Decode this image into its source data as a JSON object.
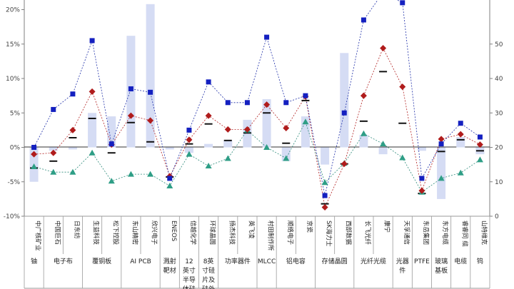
{
  "chart_data": {
    "type": "bar",
    "left_axis": {
      "ticks": [
        "20%",
        "15%",
        "10%",
        "5%",
        "0%",
        "-5%",
        "-10%"
      ],
      "ylim": [
        -10,
        20
      ]
    },
    "right_axis": {
      "ticks": [
        "0",
        "10",
        "20",
        "30",
        "40",
        "50"
      ],
      "ylim": [
        0,
        60
      ]
    },
    "companies": [
      "中广核矿业",
      "中国巨石",
      "日东纺",
      "生益科技",
      "松下控股",
      "东山精密",
      "欣兴电子",
      "ENEOS",
      "信越化学",
      "环球晶圆",
      "扬杰科技",
      "英飞凌",
      "村田制作所",
      "顺络电子",
      "京瓷",
      "SK海力士",
      "西部数据",
      "长飞光纤",
      "康宁",
      "天孚通信",
      "东岳集团",
      "东方电缆",
      "睿睿同 缆",
      "山特维克"
    ],
    "groups": [
      {
        "label": "铀",
        "span": 1
      },
      {
        "label": "电子布",
        "span": 2
      },
      {
        "label": "覆铜板",
        "span": 2
      },
      {
        "label": "AI PCB",
        "span": 2
      },
      {
        "label": "溅射靶材",
        "span": 1
      },
      {
        "label": "12英寸半导体硅片",
        "span": 1
      },
      {
        "label": "8英寸硅片及硅外延",
        "span": 1
      },
      {
        "label": "功率器件",
        "span": 2
      },
      {
        "label": "MLCC",
        "span": 1
      },
      {
        "label": "铝电容",
        "span": 2
      },
      {
        "label": "存储晶圆",
        "span": 2
      },
      {
        "label": "光纤光缆",
        "span": 2
      },
      {
        "label": "光器件",
        "span": 1
      },
      {
        "label": "PTFE",
        "span": 1
      },
      {
        "label": "玻璃基板",
        "span": 1
      },
      {
        "label": "电缆",
        "span": 1
      },
      {
        "label": "钨",
        "span": 1
      }
    ],
    "series": [
      {
        "marker": "bar",
        "axis": "left",
        "values": [
          -5,
          -0.5,
          -0.3,
          5,
          4.5,
          16.2,
          20.8,
          -0.3,
          -0.8,
          0.5,
          1.0,
          4.0,
          7.0,
          -2.0,
          4.5,
          -2.5,
          13.7,
          1.8,
          -1.0,
          0,
          -0.5,
          -7.5,
          1.5,
          -1.0
        ]
      },
      {
        "marker": "dash",
        "axis": "left",
        "values": [
          -3.0,
          -2.0,
          1.4,
          4.2,
          -0.8,
          3.6,
          0.8,
          -4.3,
          0.5,
          3.4,
          1.0,
          2.1,
          5.0,
          0.6,
          6.8,
          -8.2,
          -2.4,
          3.8,
          11.0,
          3.5,
          -6.7,
          -0.6,
          1.1,
          -0.5
        ]
      },
      {
        "marker": "diamond",
        "axis": "left",
        "values": [
          -1.0,
          -0.8,
          2.5,
          8.1,
          0.4,
          4.6,
          3.9,
          -4.2,
          1.1,
          4.6,
          2.6,
          2.6,
          6.2,
          2.8,
          7.4,
          -8.7,
          -2.4,
          7.5,
          14.4,
          8.8,
          -6.3,
          1.2,
          1.9,
          0.4
        ]
      },
      {
        "marker": "triangle",
        "axis": "left",
        "values": [
          -2.8,
          -3.6,
          -3.6,
          -0.8,
          -4.9,
          -3.9,
          -3.9,
          -5.6,
          -1.0,
          -2.7,
          -1.6,
          2.5,
          0.0,
          -1.6,
          3.7,
          -5.1,
          -2.3,
          2.0,
          0.5,
          -1.5,
          -6.5,
          -4.5,
          -3.7,
          -1.8
        ]
      },
      {
        "marker": "square",
        "axis": "right",
        "values": [
          20,
          31,
          35.5,
          51,
          21,
          37,
          36,
          11,
          25,
          39,
          33,
          33,
          52,
          33,
          35,
          6,
          30,
          57,
          65,
          62,
          11,
          21,
          27,
          23
        ]
      }
    ]
  }
}
